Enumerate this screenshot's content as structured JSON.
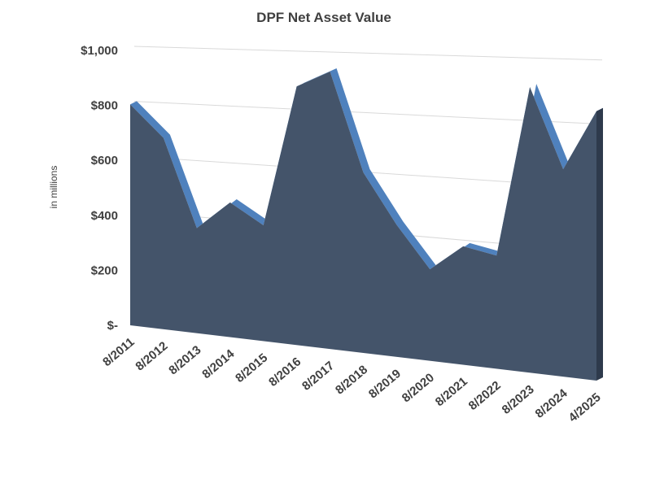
{
  "chart_data": {
    "type": "area",
    "title": "DPF Net Asset Value",
    "xlabel": "",
    "ylabel": "in millions",
    "categories": [
      "8/2011",
      "8/2012",
      "8/2013",
      "8/2014",
      "8/2015",
      "8/2016",
      "8/2017",
      "8/2018",
      "8/2019",
      "8/2020",
      "8/2021",
      "8/2022",
      "8/2023",
      "8/2024",
      "4/2025"
    ],
    "yticks": [
      "$-",
      "$200",
      "$400",
      "$600",
      "$800",
      "$1,000"
    ],
    "ylim": [
      0,
      1000
    ],
    "grid": true,
    "legend": "none",
    "colors": {
      "face": "#44546a",
      "ridge": "#4f81bd",
      "side": "#2e3a4c",
      "grid": "#d9d9d9",
      "text": "#404040"
    },
    "series": [
      {
        "values": [
          820,
          710,
          390,
          500,
          430,
          960,
          1030,
          670,
          490,
          340,
          440,
          420,
          1060,
          770,
          1000
        ]
      }
    ]
  }
}
